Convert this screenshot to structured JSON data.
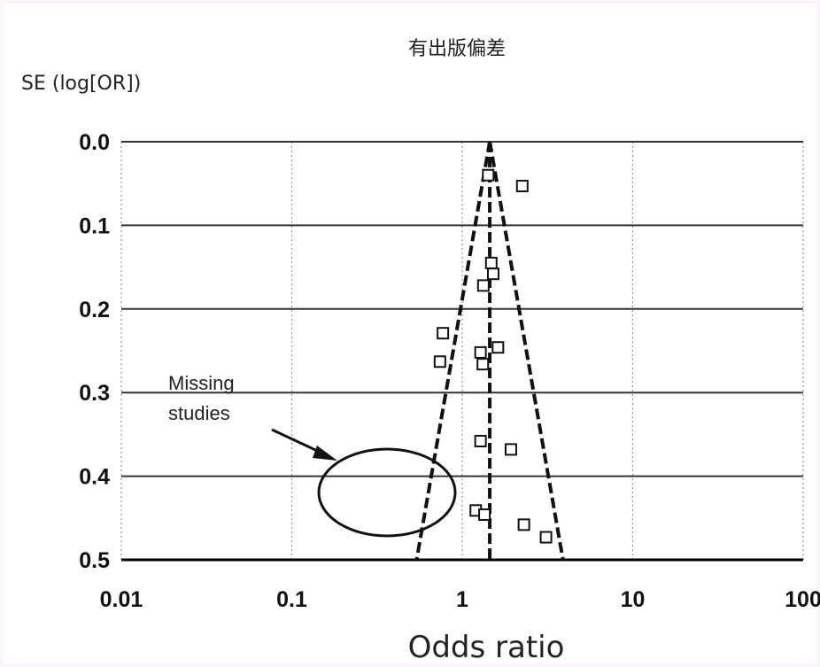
{
  "chart_data": {
    "type": "scatter",
    "title": "有出版偏差",
    "xlabel": "Odds ratio",
    "ylabel": "SE (log[OR])",
    "x_scale": "log",
    "xlim": [
      0.01,
      100
    ],
    "ylim": [
      0.0,
      0.5
    ],
    "y_inverted": true,
    "x_ticks": [
      "0.01",
      "0.1",
      "1",
      "10",
      "100"
    ],
    "y_ticks": [
      "0.0",
      "0.1",
      "0.2",
      "0.3",
      "0.4",
      "0.5"
    ],
    "grid": {
      "horizontal": true,
      "vertical": "dotted"
    },
    "pooled_estimate": 1.45,
    "funnel_limits": {
      "left_at_0.5": 0.54,
      "right_at_0.5": 3.9
    },
    "points": [
      {
        "x": 1.42,
        "y": 0.04
      },
      {
        "x": 2.25,
        "y": 0.053
      },
      {
        "x": 1.48,
        "y": 0.145
      },
      {
        "x": 1.52,
        "y": 0.158
      },
      {
        "x": 1.33,
        "y": 0.172
      },
      {
        "x": 0.77,
        "y": 0.229
      },
      {
        "x": 0.74,
        "y": 0.263
      },
      {
        "x": 1.28,
        "y": 0.252
      },
      {
        "x": 1.32,
        "y": 0.266
      },
      {
        "x": 1.62,
        "y": 0.246
      },
      {
        "x": 1.28,
        "y": 0.358
      },
      {
        "x": 1.93,
        "y": 0.368
      },
      {
        "x": 1.2,
        "y": 0.441
      },
      {
        "x": 1.35,
        "y": 0.446
      },
      {
        "x": 2.3,
        "y": 0.458
      },
      {
        "x": 3.1,
        "y": 0.473
      }
    ],
    "annotation": {
      "text_lines": [
        "Missing",
        "studies"
      ]
    }
  }
}
